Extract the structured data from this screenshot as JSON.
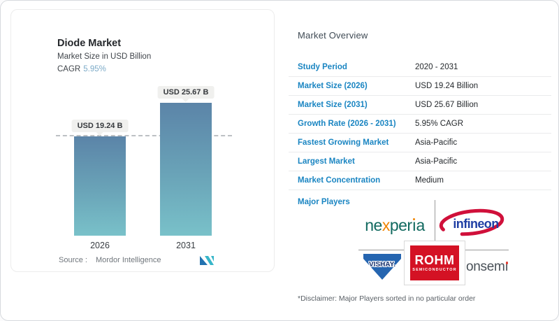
{
  "chart_card": {
    "title": "Diode Market",
    "subtitle": "Market Size in USD Billion",
    "cagr_label": "CAGR",
    "cagr_value": "5.95%",
    "source_label": "Source :",
    "source_value": "Mordor Intelligence"
  },
  "chart_data": {
    "type": "bar",
    "title": "Diode Market",
    "subtitle": "Market Size in USD Billion",
    "cagr": "5.95%",
    "categories": [
      "2026",
      "2031"
    ],
    "values": [
      19.24,
      25.67
    ],
    "value_labels": [
      "USD 19.24 B",
      "USD 25.67 B"
    ],
    "ylim": [
      0,
      28
    ],
    "reference_line": 19.24,
    "grid": "off",
    "legend": "none",
    "bar_gradient_top": "#5b84a8",
    "bar_gradient_bottom": "#79c1c9"
  },
  "overview": {
    "title": "Market Overview",
    "rows": [
      {
        "label": "Study Period",
        "value": "2020 - 2031"
      },
      {
        "label": "Market Size (2026)",
        "value": "USD 19.24 Billion"
      },
      {
        "label": "Market Size (2031)",
        "value": "USD 25.67 Billion"
      },
      {
        "label": "Growth Rate (2026 - 2031)",
        "value": "5.95% CAGR"
      },
      {
        "label": "Fastest Growing Market",
        "value": "Asia-Pacific"
      },
      {
        "label": "Largest Market",
        "value": "Asia-Pacific"
      },
      {
        "label": "Market Concentration",
        "value": "Medium"
      }
    ],
    "major_players_label": "Major Players",
    "players": [
      "nexperia",
      "infineon",
      "VISHAY",
      "ROHM SEMICONDUCTOR",
      "onsemi"
    ],
    "disclaimer": "*Disclaimer: Major Players sorted in no particular order"
  },
  "logos": {
    "nexperia": {
      "ne": "ne",
      "x": "x",
      "per": "per",
      "i": "ı",
      "a": "a"
    },
    "infineon": {
      "text": "infineon"
    },
    "vishay": {
      "text": "VISHAY."
    },
    "rohm": {
      "line1": "ROHM",
      "line2": "SEMICONDUCTOR"
    },
    "onsemi": {
      "pre": "onsem",
      "i": "ı"
    }
  },
  "colors": {
    "label_blue": "#1a85c2",
    "cagr_blue": "#7dabc8",
    "bar_top": "#5b84a8",
    "bar_bottom": "#79c1c9",
    "nexperia_green": "#11695f",
    "nexperia_orange": "#f08400",
    "infineon_blue": "#1f3fa4",
    "infineon_red": "#d0103a",
    "rohm_red": "#d41224",
    "vishay_blue": "#2565b0",
    "onsemi_gray": "#4a5158",
    "onsemi_dot": "#e03c31",
    "mordor_blue": "#2272b0",
    "mordor_teal": "#38b6c9"
  }
}
